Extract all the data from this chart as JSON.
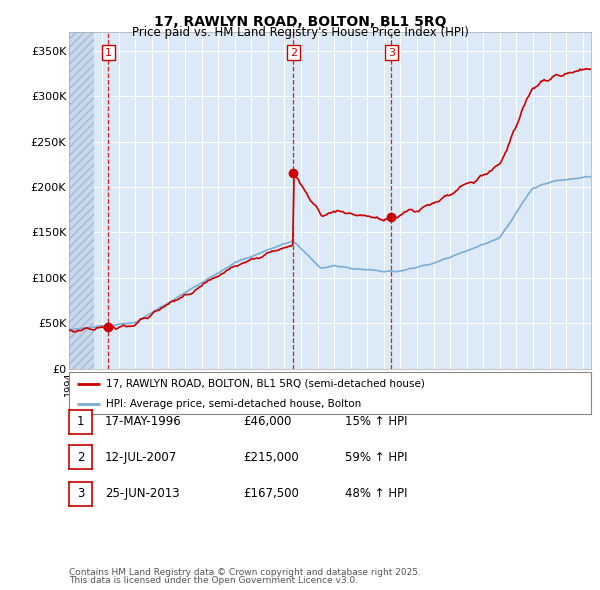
{
  "title": "17, RAWLYN ROAD, BOLTON, BL1 5RQ",
  "subtitle": "Price paid vs. HM Land Registry's House Price Index (HPI)",
  "ylabel_ticks": [
    "£0",
    "£50K",
    "£100K",
    "£150K",
    "£200K",
    "£250K",
    "£300K",
    "£350K"
  ],
  "ytick_vals": [
    0,
    50000,
    100000,
    150000,
    200000,
    250000,
    300000,
    350000
  ],
  "ylim": [
    0,
    370000
  ],
  "xlim_start": 1994.0,
  "xlim_end": 2025.5,
  "transaction_color": "#cc0000",
  "hpi_color": "#7aadd4",
  "plot_bg_color": "#dce9f7",
  "grid_color": "#ffffff",
  "hatch_color": "#c8d8ee",
  "legend_line1": "17, RAWLYN ROAD, BOLTON, BL1 5RQ (semi-detached house)",
  "legend_line2": "HPI: Average price, semi-detached house, Bolton",
  "transactions": [
    {
      "label": "1",
      "date_year": 1996.37,
      "price": 46000
    },
    {
      "label": "2",
      "date_year": 2007.53,
      "price": 215000
    },
    {
      "label": "3",
      "date_year": 2013.46,
      "price": 167500
    }
  ],
  "footer_line1": "Contains HM Land Registry data © Crown copyright and database right 2025.",
  "footer_line2": "This data is licensed under the Open Government Licence v3.0.",
  "table_rows": [
    {
      "num": "1",
      "date": "17-MAY-1996",
      "price": "£46,000",
      "hpi": "15% ↑ HPI"
    },
    {
      "num": "2",
      "date": "12-JUL-2007",
      "price": "£215,000",
      "hpi": "59% ↑ HPI"
    },
    {
      "num": "3",
      "date": "25-JUN-2013",
      "price": "£167,500",
      "hpi": "48% ↑ HPI"
    }
  ]
}
